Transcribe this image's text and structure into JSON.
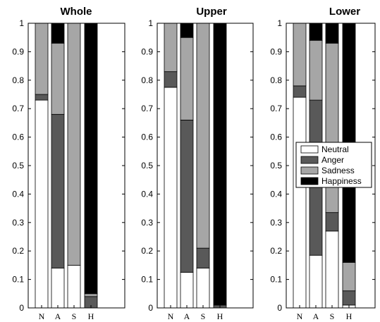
{
  "chart_data": [
    {
      "type": "bar",
      "stacked": true,
      "title": "Whole",
      "categories": [
        "N",
        "A",
        "S",
        "H"
      ],
      "ylim": [
        0,
        1
      ],
      "yticks": [
        "0",
        "0.1",
        "0.2",
        "0.3",
        "0.4",
        "0.5",
        "0.6",
        "0.7",
        "0.8",
        "0.9",
        "1"
      ],
      "series": [
        {
          "name": "Neutral",
          "color": "#ffffff",
          "values": [
            0.73,
            0.14,
            0.15,
            0.0
          ]
        },
        {
          "name": "Anger",
          "color": "#595959",
          "values": [
            0.02,
            0.54,
            0.0,
            0.04
          ]
        },
        {
          "name": "Sadness",
          "color": "#a6a6a6",
          "values": [
            0.25,
            0.25,
            0.85,
            0.01
          ]
        },
        {
          "name": "Happiness",
          "color": "#000000",
          "values": [
            0.0,
            0.07,
            0.0,
            0.95
          ]
        }
      ]
    },
    {
      "type": "bar",
      "stacked": true,
      "title": "Upper",
      "categories": [
        "N",
        "A",
        "S",
        "H"
      ],
      "ylim": [
        0,
        1
      ],
      "yticks": [
        "0",
        "0.1",
        "0.2",
        "0.3",
        "0.4",
        "0.5",
        "0.6",
        "0.7",
        "0.8",
        "0.9",
        "1"
      ],
      "series": [
        {
          "name": "Neutral",
          "color": "#ffffff",
          "values": [
            0.775,
            0.125,
            0.14,
            0.0
          ]
        },
        {
          "name": "Anger",
          "color": "#595959",
          "values": [
            0.055,
            0.535,
            0.07,
            0.01
          ]
        },
        {
          "name": "Sadness",
          "color": "#a6a6a6",
          "values": [
            0.17,
            0.29,
            0.79,
            0.0
          ]
        },
        {
          "name": "Happiness",
          "color": "#000000",
          "values": [
            0.0,
            0.05,
            0.0,
            0.99
          ]
        }
      ]
    },
    {
      "type": "bar",
      "stacked": true,
      "title": "Lower",
      "categories": [
        "N",
        "A",
        "S",
        "H"
      ],
      "ylim": [
        0,
        1
      ],
      "yticks": [
        "0",
        "0.1",
        "0.2",
        "0.3",
        "0.4",
        "0.5",
        "0.6",
        "0.7",
        "0.8",
        "0.9",
        "1"
      ],
      "legend": {
        "placement": "middle-right",
        "entries": [
          "Neutral",
          "Anger",
          "Sadness",
          "Happiness"
        ]
      },
      "series": [
        {
          "name": "Neutral",
          "color": "#ffffff",
          "values": [
            0.74,
            0.185,
            0.27,
            0.01
          ]
        },
        {
          "name": "Anger",
          "color": "#595959",
          "values": [
            0.04,
            0.545,
            0.065,
            0.05
          ]
        },
        {
          "name": "Sadness",
          "color": "#a6a6a6",
          "values": [
            0.22,
            0.21,
            0.595,
            0.1
          ]
        },
        {
          "name": "Happiness",
          "color": "#000000",
          "values": [
            0.0,
            0.06,
            0.07,
            0.84
          ]
        }
      ]
    }
  ]
}
